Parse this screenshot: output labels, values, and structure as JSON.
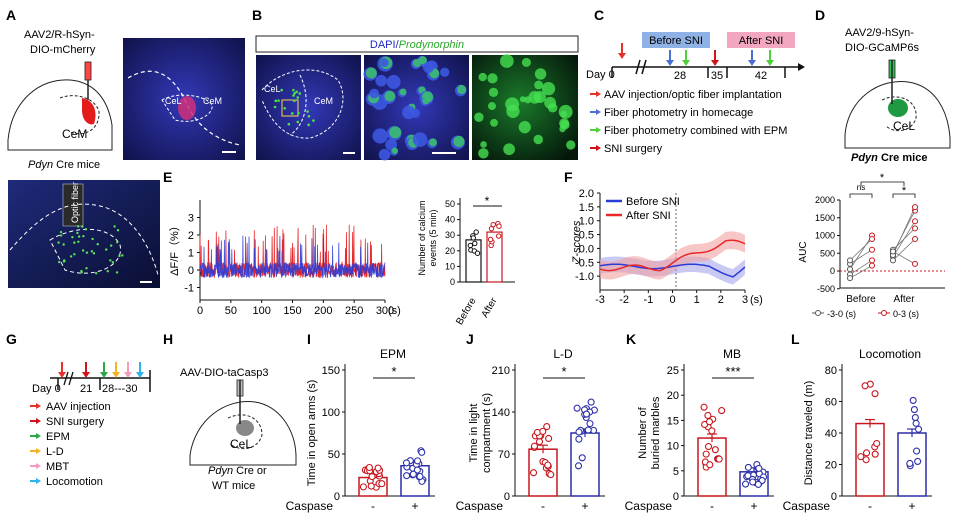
{
  "panels": {
    "A": {
      "letter": "A",
      "virus": [
        "AAV2/R-hSyn-",
        "DIO-mCherry"
      ],
      "region": "CeM",
      "mouse_line": "Pdyn",
      "mouse_suffix": " Cre mice",
      "micro_labels": [
        "CeL",
        "CeM"
      ]
    },
    "B": {
      "letter": "B",
      "header_dapi": "DAPI/",
      "header_pdyn": "Prodynorphin",
      "micro_labels": [
        "CeL",
        "CeM"
      ]
    },
    "C": {
      "letter": "C",
      "before_label": "Before  SNI",
      "after_label": "After  SNI",
      "day_label": "Day 0",
      "days": [
        "28",
        "35",
        "42"
      ],
      "legend": [
        {
          "text": "AAV injection/optic fiber implantation",
          "color": "#e8302a"
        },
        {
          "text": "Fiber photometry in homecage",
          "color": "#4a6fd1"
        },
        {
          "text": "Fiber photometry combined with EPM",
          "color": "#4fcf3a"
        },
        {
          "text": "SNI surgery",
          "color": "#d0121b"
        }
      ]
    },
    "D": {
      "letter": "D",
      "virus": [
        "AAV2/9-hSyn-",
        "DIO-GCaMP6s"
      ],
      "region": "CeL",
      "mouse_line": "Pdyn",
      "mouse_suffix": " Cre mice",
      "fiber_label": "Optic fiber"
    },
    "E": {
      "letter": "E",
      "ylabel": "ΔF/F（%）",
      "yticks": [
        "3",
        "2",
        "1",
        "0",
        "-1"
      ],
      "xticks": [
        "0",
        "50",
        "100",
        "150",
        "200",
        "250",
        "300"
      ],
      "xunit": "(s)",
      "bar_ylabel": [
        "Number of calcium",
        "events (5 min)"
      ],
      "bar_yticks": [
        "50",
        "40",
        "30",
        "20",
        "10",
        "0"
      ],
      "bar_categories": [
        "Before",
        "After"
      ],
      "sig": "*"
    },
    "F": {
      "letter": "F",
      "ylabel": "Z-scores",
      "yticks": [
        "2.0",
        "1.5",
        "1.0",
        "0.5",
        "0.0",
        "-0.5",
        "-1.0"
      ],
      "xticks": [
        "-3",
        "-2",
        "-1",
        "0",
        "1",
        "2",
        "3"
      ],
      "xunit": "(s)",
      "legend": [
        "Before SNI",
        "After SNI"
      ],
      "auc_ylabel": "AUC",
      "auc_yticks": [
        "2000",
        "1500",
        "1000",
        "500",
        "0",
        "-500"
      ],
      "auc_groups": [
        "Before",
        "After"
      ],
      "auc_legend": [
        "-3-0 (s)",
        "0-3 (s)"
      ],
      "sig_ns": "ns",
      "sig": "*"
    },
    "G": {
      "letter": "G",
      "day_label": "Day 0",
      "days": [
        "21",
        "28---30"
      ],
      "legend": [
        {
          "text": "AAV injection",
          "color": "#e8302a"
        },
        {
          "text": "SNI surgery",
          "color": "#d0121b"
        },
        {
          "text": "EPM",
          "color": "#2aa84a"
        },
        {
          "text": "L-D",
          "color": "#f5b324"
        },
        {
          "text": "MBT",
          "color": "#f29ac0"
        },
        {
          "text": "Locomotion",
          "color": "#2bb5e8"
        }
      ]
    },
    "H": {
      "letter": "H",
      "virus": "AAV-DIO-taCasp3",
      "region": "CeL",
      "mouse_line": "Pdyn",
      "mouse_suffix": " Cre or",
      "mouse_line2": "WT mice"
    },
    "I": {
      "letter": "I",
      "title": "EPM",
      "ylabel": "Time in open arms (s)",
      "yticks": [
        "150",
        "100",
        "50",
        "0"
      ],
      "sig": "*"
    },
    "J": {
      "letter": "J",
      "title": "L-D",
      "ylabel": [
        "Time in light",
        "compartment (s)"
      ],
      "yticks": [
        "210",
        "140",
        "70",
        "0"
      ],
      "sig": "*"
    },
    "K": {
      "letter": "K",
      "title": "MB",
      "ylabel": [
        "Number of",
        "buried marbles"
      ],
      "yticks": [
        "25",
        "20",
        "15",
        "10",
        "5",
        "0"
      ],
      "sig": "***"
    },
    "L": {
      "letter": "L",
      "title": "Locomotion",
      "ylabel": "Distance traveled (m)",
      "yticks": [
        "80",
        "60",
        "40",
        "20",
        "0"
      ]
    },
    "caspase": {
      "label": "Caspase",
      "minus": "-",
      "plus": "+"
    }
  },
  "colors": {
    "red": "#c8161e",
    "blue": "#2b2fa8",
    "red_trace": "#e8282a",
    "blue_trace": "#2b3bd6",
    "before_box": "#8fb2e6",
    "after_box": "#f2a6bf"
  },
  "chart_data": [
    {
      "panel": "E-bar",
      "type": "bar",
      "categories": [
        "Before",
        "After"
      ],
      "values": [
        27,
        32
      ],
      "ylim": [
        0,
        50
      ],
      "ylabel": "Number of calcium events (5 min)"
    },
    {
      "panel": "F-auc",
      "type": "scatter",
      "groups": [
        "Before",
        "After"
      ],
      "series": [
        "-3-0 (s)",
        "0-3 (s)"
      ],
      "ylim": [
        -500,
        2000
      ],
      "ylabel": "AUC"
    },
    {
      "panel": "I",
      "type": "bar",
      "categories": [
        "-",
        "+"
      ],
      "values": [
        22,
        36
      ],
      "ylim": [
        0,
        150
      ],
      "title": "EPM",
      "ylabel": "Time in open arms (s)"
    },
    {
      "panel": "J",
      "type": "bar",
      "categories": [
        "-",
        "+"
      ],
      "values": [
        78,
        105
      ],
      "ylim": [
        0,
        210
      ],
      "title": "L-D",
      "ylabel": "Time in light compartment (s)"
    },
    {
      "panel": "K",
      "type": "bar",
      "categories": [
        "-",
        "+"
      ],
      "values": [
        11.5,
        4.8
      ],
      "ylim": [
        0,
        25
      ],
      "title": "MB",
      "ylabel": "Number of buried marbles"
    },
    {
      "panel": "L",
      "type": "bar",
      "categories": [
        "-",
        "+"
      ],
      "values": [
        46,
        40
      ],
      "ylim": [
        0,
        80
      ],
      "title": "Locomotion",
      "ylabel": "Distance traveled (m)"
    }
  ]
}
